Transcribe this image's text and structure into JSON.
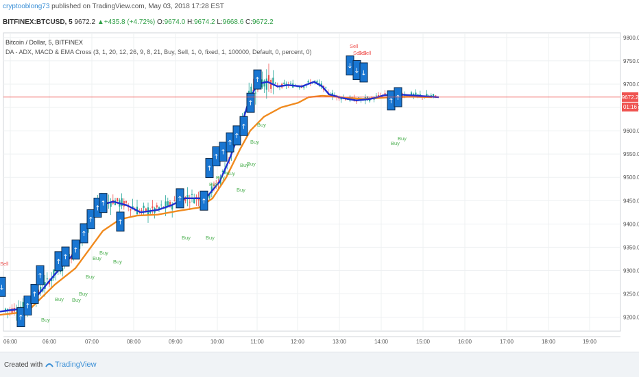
{
  "header": {
    "user": "cryptooblong73",
    "published": "published on TradingView.com, May 03, 2018 17:28 EST"
  },
  "ticker": {
    "symbol": "BITFINEX:BTCUSD, 5",
    "last": "9672.2",
    "change": "▲+435.8 (+4.72%)",
    "o_label": "O:",
    "o": "9674.0",
    "h_label": "H:",
    "h": "9674.2",
    "l_label": "L:",
    "l": "9668.6",
    "c_label": "C:",
    "c": "9672.2"
  },
  "series_title": "Bitcoin / Dollar, 5, BITFINEX",
  "indicator_title": "DA - ADX, MACD & EMA Cross (3, 1, 20, 12, 26, 9, 8, 21, Buy, Sell, 1, 0, fixed, 1, 100000, Default, 0, percent, 0)",
  "footer": {
    "created": "Created with",
    "brand": "TradingView"
  },
  "colors": {
    "up": "#26a69a",
    "down": "#ef5350",
    "ema_fast": "#1f2fd1",
    "ema_slow": "#f08a1e",
    "buy": "#4caf50",
    "sell": "#ef5350",
    "signal_box": "#1976d2",
    "last_price": "#ef5350"
  },
  "chart_data": {
    "type": "candlestick",
    "y_range": [
      9170,
      9810
    ],
    "y_ticks": [
      "9800.0",
      "9750.0",
      "9700.0",
      "9650.0",
      "9600.0",
      "9550.0",
      "9500.0",
      "9450.0",
      "9400.0",
      "9350.0",
      "9300.0",
      "9250.0",
      "9200.0"
    ],
    "x_ticks": [
      "06:00",
      "06:00",
      "07:00",
      "08:00",
      "09:00",
      "10:00",
      "11:00",
      "12:00",
      "13:00",
      "14:00",
      "15:00",
      "16:00",
      "17:00",
      "18:00",
      "19:00"
    ],
    "last_price_label": "9672.2",
    "countdown_label": "01:16",
    "ema_fast_approx": [
      [
        0,
        9212
      ],
      [
        40,
        9220
      ],
      [
        80,
        9292
      ],
      [
        110,
        9340
      ],
      [
        130,
        9400
      ],
      [
        145,
        9440
      ],
      [
        165,
        9448
      ],
      [
        185,
        9440
      ],
      [
        205,
        9425
      ],
      [
        230,
        9430
      ],
      [
        250,
        9440
      ],
      [
        270,
        9455
      ],
      [
        300,
        9455
      ],
      [
        320,
        9490
      ],
      [
        335,
        9540
      ],
      [
        350,
        9600
      ],
      [
        362,
        9660
      ],
      [
        375,
        9700
      ],
      [
        390,
        9705
      ],
      [
        405,
        9695
      ],
      [
        420,
        9698
      ],
      [
        440,
        9695
      ],
      [
        458,
        9705
      ],
      [
        470,
        9695
      ],
      [
        480,
        9678
      ],
      [
        500,
        9670
      ],
      [
        520,
        9665
      ],
      [
        540,
        9668
      ],
      [
        560,
        9676
      ],
      [
        580,
        9678
      ],
      [
        600,
        9676
      ],
      [
        620,
        9674
      ],
      [
        640,
        9672
      ]
    ],
    "ema_slow_approx": [
      [
        0,
        9205
      ],
      [
        40,
        9212
      ],
      [
        80,
        9270
      ],
      [
        110,
        9305
      ],
      [
        130,
        9345
      ],
      [
        150,
        9385
      ],
      [
        175,
        9410
      ],
      [
        200,
        9418
      ],
      [
        230,
        9420
      ],
      [
        260,
        9428
      ],
      [
        290,
        9435
      ],
      [
        310,
        9455
      ],
      [
        330,
        9500
      ],
      [
        350,
        9560
      ],
      [
        365,
        9600
      ],
      [
        385,
        9630
      ],
      [
        410,
        9650
      ],
      [
        435,
        9660
      ],
      [
        450,
        9672
      ],
      [
        470,
        9675
      ],
      [
        490,
        9673
      ],
      [
        510,
        9670
      ],
      [
        530,
        9668
      ],
      [
        550,
        9670
      ],
      [
        570,
        9672
      ],
      [
        600,
        9673
      ],
      [
        630,
        9672
      ]
    ],
    "buy_labels": [
      "Buy",
      "Buy",
      "Buy",
      "Buy",
      "Buy",
      "Buy",
      "Buy",
      "Buy",
      "Buy",
      "Buy",
      "Buy",
      "Buy",
      "Buy",
      "Buy",
      "Buy",
      "Buy",
      "Buy",
      "Buy",
      "Buy",
      "Buy"
    ],
    "sell_labels": [
      "Sell",
      "Sell",
      "Sell",
      "Sell",
      "Sell"
    ]
  }
}
